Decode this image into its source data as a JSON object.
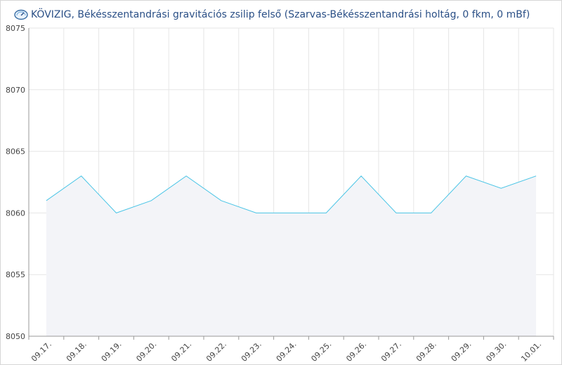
{
  "header": {
    "title": "KÖVIZIG, Békésszentandrási gravitációs zsilip felső (Szarvas-Békésszentandrási holtág, 0 fkm, 0 mBf)",
    "icon": "gauge-icon"
  },
  "colors": {
    "line": "#4bc5e6",
    "area": "#f3f4f8",
    "grid": "#e6e6e6",
    "axis": "#999999",
    "title": "#2a4f86"
  },
  "chart_data": {
    "type": "area",
    "title": "KÖVIZIG, Békésszentandrási gravitációs zsilip felső (Szarvas-Békésszentandrási holtág, 0 fkm, 0 mBf)",
    "xlabel": "",
    "ylabel": "",
    "x": [
      "09.17.",
      "09.18.",
      "09.19.",
      "09.20.",
      "09.21.",
      "09.22.",
      "09.23.",
      "09.24.",
      "09.25.",
      "09.26.",
      "09.27.",
      "09.28.",
      "09.29.",
      "09.30.",
      "10.01."
    ],
    "series": [
      {
        "values": [
          8061,
          8063,
          8060,
          8061,
          8063,
          8061,
          8060,
          8060,
          8060,
          8063,
          8060,
          8060,
          8063,
          8062,
          8063
        ]
      }
    ],
    "ylim": [
      8050,
      8075
    ],
    "yticks": [
      8050,
      8055,
      8060,
      8065,
      8070,
      8075
    ],
    "grid": true,
    "legend": "none"
  }
}
